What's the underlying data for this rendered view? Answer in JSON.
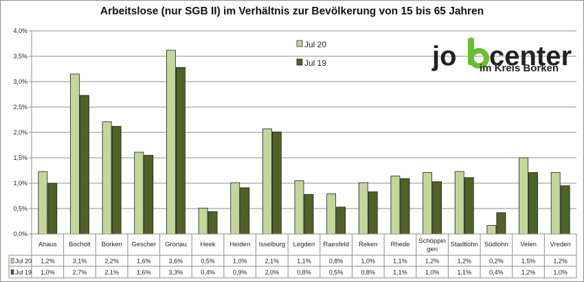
{
  "chart_data": {
    "type": "bar",
    "title": "Arbeitslose (nur SGB II) im Verhältnis zur Bevölkerung von 15 bis 65 Jahren",
    "categories": [
      "Ahaus",
      "Bocholt",
      "Borken",
      "Gescher",
      "Gronau",
      "Heek",
      "Heiden",
      "Isselburg",
      "Legden",
      "Raesfeld",
      "Reken",
      "Rhede",
      "Schöppingen",
      "Stadtlohn",
      "Südlohn",
      "Velen",
      "Vreden"
    ],
    "series": [
      {
        "name": "Jul 20",
        "color": "#c4d79b",
        "values": [
          1.23,
          3.15,
          2.21,
          1.61,
          3.62,
          0.51,
          1.01,
          2.07,
          1.05,
          0.79,
          1.01,
          1.14,
          1.21,
          1.23,
          0.17,
          1.5,
          1.21
        ],
        "table_values": [
          "1,2%",
          "3,1%",
          "2,2%",
          "1,6%",
          "3,6%",
          "0,5%",
          "1,0%",
          "2,1%",
          "1,1%",
          "0,8%",
          "1,0%",
          "1,1%",
          "1,2%",
          "1,2%",
          "0,2%",
          "1,5%",
          "1,2%"
        ]
      },
      {
        "name": "Jul 19",
        "color": "#4f6228",
        "values": [
          1.0,
          2.73,
          2.12,
          1.55,
          3.28,
          0.44,
          0.91,
          2.01,
          0.78,
          0.53,
          0.83,
          1.09,
          1.03,
          1.11,
          0.42,
          1.21,
          0.95
        ],
        "table_values": [
          "1,0%",
          "2,7%",
          "2,1%",
          "1,6%",
          "3,3%",
          "0,4%",
          "0,9%",
          "2,0%",
          "0,8%",
          "0,5%",
          "0,8%",
          "1,1%",
          "1,0%",
          "1,1%",
          "0,4%",
          "1,2%",
          "1,0%"
        ]
      }
    ],
    "ylim": [
      0,
      4.0
    ],
    "yticks": [
      "0,0%",
      "0,5%",
      "1,0%",
      "1,5%",
      "2,0%",
      "2,5%",
      "3,0%",
      "3,5%",
      "4,0%"
    ],
    "grid": true,
    "legend_position": "top-center",
    "data_table": true
  },
  "logo": {
    "main": "jobcenter",
    "sub": "im Kreis Borken",
    "accent_color": "#6abf2e"
  }
}
